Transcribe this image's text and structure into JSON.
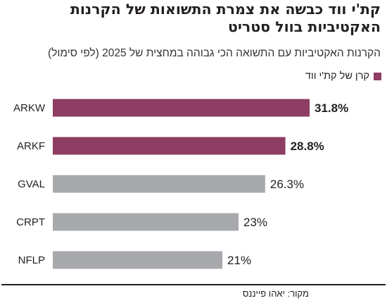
{
  "title": "קת'י ווד כבשה את צמרת התשואות של הקרנות האקטיביות בוול סטריט",
  "subtitle": "הקרנות האקטיביות עם התשואה הכי גבוהה במחצית של 2025 (לפי סימול)",
  "source": "מקור: יאהו פייננס",
  "colors": {
    "highlight": "#8e3d63",
    "default": "#a7a9ac",
    "text": "#231f20"
  },
  "chart_data": {
    "type": "bar",
    "orientation": "horizontal",
    "categories": [
      "ARKW",
      "ARKF",
      "GVAL",
      "CRPT",
      "NFLP"
    ],
    "values": [
      31.8,
      28.8,
      26.3,
      23,
      21
    ],
    "value_labels": [
      "31.8%",
      "28.8%",
      "26.3%",
      "23%",
      "21%"
    ],
    "highlighted": [
      true,
      true,
      false,
      false,
      false
    ],
    "legend": [
      {
        "label": "קרן של קת'י ווד",
        "color": "#8e3d63"
      }
    ],
    "legend_position": "top-right",
    "grid": false,
    "axis_min": 0
  }
}
